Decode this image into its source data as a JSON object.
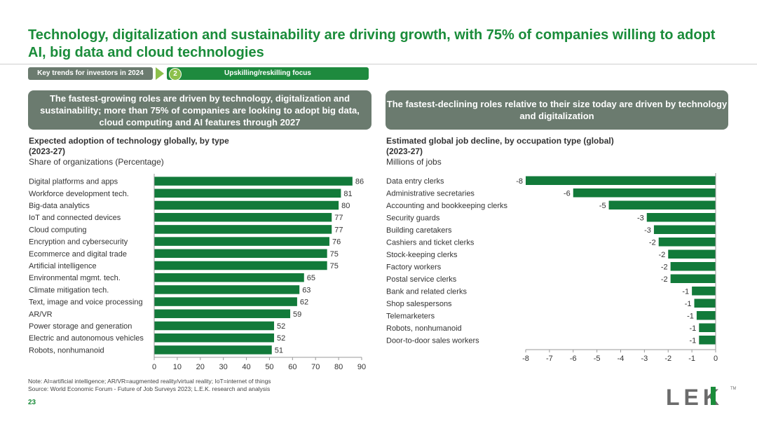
{
  "title": "Technology, digitalization and sustainability are driving growth, with 75% of companies willing to adopt AI, big data and cloud technologies",
  "nav": {
    "section": "Key trends for investors in 2024",
    "step_number": "2",
    "step_label": "Upskilling/reskilling focus"
  },
  "banners": {
    "left": "The fastest-growing roles are driven by technology, digitalization and sustainability; more than 75% of companies are looking to adopt big data, cloud computing and AI features through 2027",
    "right": "The fastest-declining roles relative to their size today are driven by technology and digitalization"
  },
  "colors": {
    "bar": "#127a3a",
    "accent": "#1a8c3a",
    "banner": "#6b7b6f"
  },
  "chart_data": [
    {
      "type": "bar",
      "orientation": "horizontal",
      "title": "Expected adoption of technology globally, by type",
      "subtitle_period": "(2023-27)",
      "units": "Share of organizations (Percentage)",
      "categories": [
        "Digital platforms and apps",
        "Workforce development tech.",
        "Big-data analytics",
        "IoT and connected devices",
        "Cloud computing",
        "Encryption and cybersecurity",
        "Ecommerce and digital trade",
        "Artificial intelligence",
        "Environmental mgmt. tech.",
        "Climate mitigation tech.",
        "Text, image and voice processing",
        "AR/VR",
        "Power storage and generation",
        "Electric and autonomous vehicles",
        "Robots, nonhumanoid"
      ],
      "values": [
        86,
        81,
        80,
        77,
        77,
        76,
        75,
        75,
        65,
        63,
        62,
        59,
        52,
        52,
        51
      ],
      "xlim": [
        0,
        90
      ],
      "ticks": [
        "0",
        "10",
        "20",
        "30",
        "40",
        "50",
        "60",
        "70",
        "80",
        "90"
      ]
    },
    {
      "type": "bar",
      "orientation": "horizontal",
      "title": "Estimated global job decline, by occupation type (global)",
      "subtitle_period": "(2023-27)",
      "units": "Millions of jobs",
      "categories": [
        "Data entry clerks",
        "Administrative secretaries",
        "Accounting and bookkeeping clerks",
        "Security guards",
        "Building caretakers",
        "Cashiers and ticket clerks",
        "Stock-keeping clerks",
        "Factory workers",
        "Postal service clerks",
        "Bank and related clerks",
        "Shop salespersons",
        "Telemarketers",
        "Robots, nonhumanoid",
        "Door-to-door sales workers"
      ],
      "values": [
        -8.0,
        -6.0,
        -4.5,
        -2.9,
        -2.6,
        -2.4,
        -2.0,
        -1.9,
        -1.9,
        -1.0,
        -0.9,
        -0.8,
        -0.7,
        -0.7
      ],
      "labels": [
        "-8",
        "-6",
        "-5",
        "-3",
        "-3",
        "-2",
        "-2",
        "-2",
        "-2",
        "-1",
        "-1",
        "-1",
        "-1",
        "-1"
      ],
      "xlim": [
        -8,
        0
      ],
      "ticks": [
        "-8",
        "-7",
        "-6",
        "-5",
        "-4",
        "-3",
        "-2",
        "-1",
        "0"
      ]
    }
  ],
  "footer": {
    "note": "Note: AI=artificial intelligence; AR/VR=augmented reality/virtual reality; IoT=internet of things",
    "source": "Source:    World Economic Forum - Future of Job Surveys 2023; L.E.K. research and analysis",
    "page": "23",
    "logo_text": "LEK",
    "logo_tm": "TM"
  }
}
